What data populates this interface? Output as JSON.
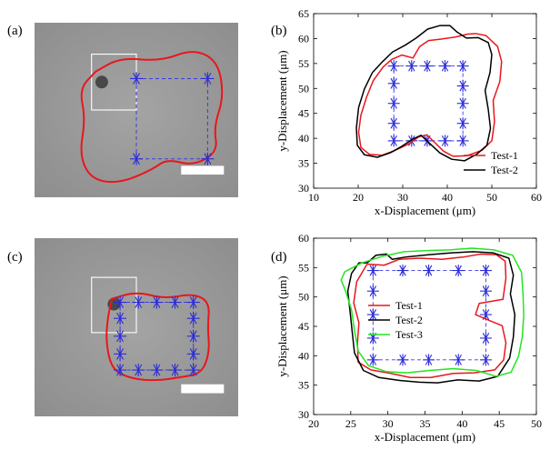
{
  "panels": {
    "a": "(a)",
    "b": "(b)",
    "c": "(c)",
    "d": "(d)"
  },
  "colors": {
    "red": "#e8171c",
    "black": "#000000",
    "green": "#22e61f",
    "marker": "#2a2ad8",
    "dash": "#3b3be0",
    "micro_bg": "#9a9a9a"
  },
  "chart_data": [
    {
      "panel": "b",
      "type": "line",
      "xlabel": "x-Displacement (μm)",
      "ylabel": "y-Displacement (μm)",
      "xlim": [
        10,
        60
      ],
      "ylim": [
        30,
        65
      ],
      "xticks": [
        "10",
        "20",
        "30",
        "40",
        "50",
        "60"
      ],
      "yticks": [
        "30",
        "35",
        "40",
        "45",
        "50",
        "55",
        "60",
        "65"
      ],
      "grid": false,
      "legend_position": "bottom-right",
      "markers": {
        "shape": "asterisk",
        "points": [
          [
            28,
            54.5
          ],
          [
            32,
            54.5
          ],
          [
            35.5,
            54.5
          ],
          [
            39.5,
            54.5
          ],
          [
            43.5,
            54.5
          ],
          [
            28,
            51
          ],
          [
            28,
            47
          ],
          [
            28,
            43
          ],
          [
            28,
            39.5
          ],
          [
            43.5,
            50.5
          ],
          [
            43.5,
            47
          ],
          [
            43.5,
            43
          ],
          [
            43.5,
            39.5
          ],
          [
            32,
            39.5
          ],
          [
            35.5,
            39.5
          ],
          [
            39.5,
            39.5
          ]
        ]
      },
      "dashed_box": {
        "x": [
          28,
          43.5
        ],
        "y": [
          39.5,
          54.5
        ]
      },
      "series": [
        {
          "name": "Test-1",
          "color": "#e8171c",
          "points": [
            [
              27.5,
              55.8
            ],
            [
              29.8,
              56.7
            ],
            [
              32.3,
              56.1
            ],
            [
              33.8,
              58.4
            ],
            [
              35.8,
              59.6
            ],
            [
              38.6,
              59.9
            ],
            [
              41.8,
              60.3
            ],
            [
              44.6,
              60.9
            ],
            [
              46.4,
              61
            ],
            [
              48.7,
              60.6
            ],
            [
              51.3,
              58.4
            ],
            [
              52.2,
              55.4
            ],
            [
              51.8,
              51.4
            ],
            [
              50.3,
              47.6
            ],
            [
              50.6,
              43.3
            ],
            [
              50,
              39.5
            ],
            [
              47.8,
              37.6
            ],
            [
              44.4,
              36.5
            ],
            [
              41.3,
              36.4
            ],
            [
              39.2,
              37.4
            ],
            [
              36.8,
              39.5
            ],
            [
              35.4,
              40.7
            ],
            [
              33.6,
              40.3
            ],
            [
              31.2,
              38.8
            ],
            [
              28.1,
              37.5
            ],
            [
              25.3,
              36.6
            ],
            [
              22.5,
              36.8
            ],
            [
              20.6,
              38.2
            ],
            [
              20.1,
              41.2
            ],
            [
              20.6,
              44.6
            ],
            [
              21.9,
              48.3
            ],
            [
              23.4,
              51.6
            ],
            [
              25.6,
              54.3
            ],
            [
              27.5,
              55.8
            ]
          ]
        },
        {
          "name": "Test-2",
          "color": "#000000",
          "points": [
            [
              25.5,
              55.4
            ],
            [
              27.7,
              57.3
            ],
            [
              30.6,
              58.7
            ],
            [
              33,
              60.1
            ],
            [
              35.6,
              61.9
            ],
            [
              38.3,
              62.6
            ],
            [
              40.6,
              62.6
            ],
            [
              42.2,
              61.3
            ],
            [
              44.3,
              60.1
            ],
            [
              46.9,
              60.2
            ],
            [
              49.2,
              59.2
            ],
            [
              50,
              56.8
            ],
            [
              49.6,
              53.2
            ],
            [
              48.5,
              49.6
            ],
            [
              49.2,
              45.8
            ],
            [
              49.7,
              42
            ],
            [
              48.9,
              38.6
            ],
            [
              46.6,
              36.8
            ],
            [
              43.9,
              35.5
            ],
            [
              41,
              35.8
            ],
            [
              38.3,
              37.1
            ],
            [
              35.8,
              39.2
            ],
            [
              34.1,
              40.6
            ],
            [
              32.2,
              39.8
            ],
            [
              29.8,
              38.4
            ],
            [
              27.2,
              37.1
            ],
            [
              24.3,
              36.2
            ],
            [
              21.4,
              36.7
            ],
            [
              19.8,
              38.6
            ],
            [
              19.6,
              42.1
            ],
            [
              20.1,
              46.2
            ],
            [
              21.4,
              49.9
            ],
            [
              23.2,
              53.2
            ],
            [
              25.5,
              55.4
            ]
          ]
        }
      ]
    },
    {
      "panel": "d",
      "type": "line",
      "xlabel": "x-Displacement (μm)",
      "ylabel": "y-Displacement (μm)",
      "xlim": [
        20,
        50
      ],
      "ylim": [
        30,
        60
      ],
      "xticks": [
        "20",
        "25",
        "30",
        "35",
        "40",
        "45",
        "50"
      ],
      "yticks": [
        "30",
        "35",
        "40",
        "45",
        "50",
        "55",
        "60"
      ],
      "grid": false,
      "legend_position": "center-left",
      "markers": {
        "shape": "asterisk",
        "points": [
          [
            28,
            54.5
          ],
          [
            32,
            54.5
          ],
          [
            35.5,
            54.5
          ],
          [
            39.5,
            54.5
          ],
          [
            43.2,
            54.5
          ],
          [
            28,
            51
          ],
          [
            28,
            47
          ],
          [
            28,
            43
          ],
          [
            28,
            39.3
          ],
          [
            43.2,
            51
          ],
          [
            43.2,
            47
          ],
          [
            43.2,
            43
          ],
          [
            43.2,
            39.3
          ],
          [
            32,
            39.3
          ],
          [
            35.5,
            39.3
          ],
          [
            39.5,
            39.3
          ]
        ]
      },
      "dashed_box": {
        "x": [
          28,
          43.2
        ],
        "y": [
          39.3,
          54.5
        ]
      },
      "series": [
        {
          "name": "Test-1",
          "color": "#e8171c",
          "points": [
            [
              27.2,
              55.6
            ],
            [
              29.5,
              55.4
            ],
            [
              31.5,
              56.4
            ],
            [
              34.3,
              56.6
            ],
            [
              37.3,
              56.4
            ],
            [
              40.2,
              56.8
            ],
            [
              42.5,
              57.3
            ],
            [
              44.6,
              57.2
            ],
            [
              45.8,
              56.1
            ],
            [
              45.9,
              53.2
            ],
            [
              45.5,
              49.6
            ],
            [
              42.3,
              48.9
            ],
            [
              41.8,
              47
            ],
            [
              43.5,
              46.1
            ],
            [
              45.4,
              45.1
            ],
            [
              45.9,
              42.2
            ],
            [
              45.6,
              39.3
            ],
            [
              44.4,
              37.6
            ],
            [
              41.6,
              37.1
            ],
            [
              38.8,
              37
            ],
            [
              35.8,
              36.3
            ],
            [
              33,
              36.3
            ],
            [
              30.4,
              37
            ],
            [
              27.7,
              37.6
            ],
            [
              26,
              38.9
            ],
            [
              25.9,
              42.2
            ],
            [
              26.1,
              45.6
            ],
            [
              25.4,
              49
            ],
            [
              25.8,
              52.6
            ],
            [
              27.2,
              55.6
            ]
          ]
        },
        {
          "name": "Test-2",
          "color": "#000000",
          "points": [
            [
              27.2,
              55.8
            ],
            [
              28.4,
              57.1
            ],
            [
              29.8,
              57.3
            ],
            [
              30.6,
              56.4
            ],
            [
              32.4,
              56.8
            ],
            [
              35.6,
              57.2
            ],
            [
              38.6,
              57.5
            ],
            [
              41.5,
              57.7
            ],
            [
              44.2,
              57.5
            ],
            [
              46.3,
              56.6
            ],
            [
              46.9,
              53.7
            ],
            [
              46.5,
              50.5
            ],
            [
              47.1,
              47
            ],
            [
              46.9,
              43.2
            ],
            [
              46.4,
              39.6
            ],
            [
              44.8,
              36.5
            ],
            [
              42.3,
              35.7
            ],
            [
              39.4,
              35.9
            ],
            [
              36.7,
              35.4
            ],
            [
              34.2,
              35.5
            ],
            [
              31.6,
              35.8
            ],
            [
              28.8,
              36.3
            ],
            [
              26.7,
              37.5
            ],
            [
              25.5,
              40.5
            ],
            [
              25.2,
              44
            ],
            [
              24.9,
              47.6
            ],
            [
              24.6,
              51
            ],
            [
              25.1,
              54
            ],
            [
              26.1,
              55.8
            ],
            [
              27.2,
              55.8
            ]
          ]
        },
        {
          "name": "Test-3",
          "color": "#22e61f",
          "points": [
            [
              24.2,
              54.3
            ],
            [
              26.5,
              55.8
            ],
            [
              29.2,
              56.9
            ],
            [
              32.2,
              57.7
            ],
            [
              35.3,
              57.9
            ],
            [
              38.3,
              58
            ],
            [
              41.3,
              58.3
            ],
            [
              44.3,
              58
            ],
            [
              46.8,
              57.1
            ],
            [
              48,
              54.2
            ],
            [
              48.2,
              50.6
            ],
            [
              48.3,
              46.9
            ],
            [
              48.1,
              43.2
            ],
            [
              47.6,
              39.9
            ],
            [
              46.6,
              37.2
            ],
            [
              44.6,
              36.5
            ],
            [
              41.9,
              37.5
            ],
            [
              38.8,
              37.8
            ],
            [
              35.6,
              37.5
            ],
            [
              32.5,
              37.1
            ],
            [
              29.8,
              37.3
            ],
            [
              27.4,
              38.3
            ],
            [
              26,
              40.8
            ],
            [
              25.5,
              44.3
            ],
            [
              25.1,
              47.8
            ],
            [
              24.3,
              51
            ],
            [
              23.7,
              52.9
            ],
            [
              24.2,
              54.3
            ]
          ]
        }
      ]
    }
  ],
  "micrographs": [
    {
      "panel": "a",
      "contour": [
        [
          0.3,
          0.28
        ],
        [
          0.42,
          0.2
        ],
        [
          0.62,
          0.22
        ],
        [
          0.78,
          0.15
        ],
        [
          0.9,
          0.22
        ],
        [
          0.93,
          0.42
        ],
        [
          0.88,
          0.6
        ],
        [
          0.9,
          0.74
        ],
        [
          0.78,
          0.82
        ],
        [
          0.65,
          0.78
        ],
        [
          0.58,
          0.84
        ],
        [
          0.42,
          0.92
        ],
        [
          0.28,
          0.9
        ],
        [
          0.22,
          0.76
        ],
        [
          0.25,
          0.55
        ],
        [
          0.22,
          0.38
        ],
        [
          0.3,
          0.28
        ]
      ],
      "markers": [
        [
          0.5,
          0.32
        ],
        [
          0.85,
          0.32
        ],
        [
          0.5,
          0.78
        ],
        [
          0.85,
          0.78
        ]
      ],
      "dashed_box": [
        0.5,
        0.32,
        0.85,
        0.78
      ],
      "white_box": [
        0.28,
        0.18,
        0.5,
        0.5
      ],
      "scale_bar": [
        0.72,
        0.82,
        0.93,
        0.87
      ],
      "dark_spot": [
        0.33,
        0.34
      ]
    },
    {
      "panel": "c",
      "contour": [
        [
          0.38,
          0.34
        ],
        [
          0.5,
          0.3
        ],
        [
          0.64,
          0.34
        ],
        [
          0.78,
          0.31
        ],
        [
          0.86,
          0.36
        ],
        [
          0.85,
          0.5
        ],
        [
          0.86,
          0.64
        ],
        [
          0.82,
          0.76
        ],
        [
          0.72,
          0.78
        ],
        [
          0.6,
          0.8
        ],
        [
          0.48,
          0.79
        ],
        [
          0.38,
          0.74
        ],
        [
          0.35,
          0.58
        ],
        [
          0.36,
          0.44
        ],
        [
          0.38,
          0.34
        ]
      ],
      "markers": [
        [
          0.42,
          0.36
        ],
        [
          0.51,
          0.36
        ],
        [
          0.6,
          0.36
        ],
        [
          0.69,
          0.36
        ],
        [
          0.78,
          0.36
        ],
        [
          0.42,
          0.45
        ],
        [
          0.42,
          0.55
        ],
        [
          0.42,
          0.65
        ],
        [
          0.42,
          0.74
        ],
        [
          0.78,
          0.45
        ],
        [
          0.78,
          0.55
        ],
        [
          0.78,
          0.65
        ],
        [
          0.78,
          0.74
        ],
        [
          0.51,
          0.74
        ],
        [
          0.6,
          0.74
        ],
        [
          0.69,
          0.74
        ]
      ],
      "dashed_box": [
        0.42,
        0.36,
        0.78,
        0.74
      ],
      "white_box": [
        0.28,
        0.22,
        0.5,
        0.53
      ],
      "scale_bar": [
        0.72,
        0.82,
        0.93,
        0.87
      ],
      "dark_spot": [
        0.39,
        0.37
      ]
    }
  ]
}
